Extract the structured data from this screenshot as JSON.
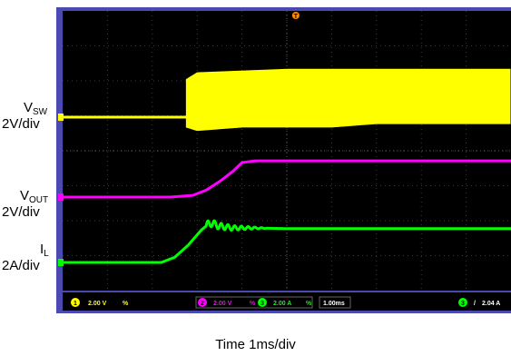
{
  "chart_data": {
    "type": "line",
    "xlabel": "Time  1ms/div",
    "series": [
      {
        "name_main": "V",
        "name_sub": "SW",
        "scale": "2V/div",
        "color": "#ffff00",
        "channel": "1",
        "x": [
          0,
          2.7,
          2.75,
          3,
          4,
          5,
          6,
          7,
          8,
          10
        ],
        "y_upper": [
          0,
          0,
          1.1,
          1.3,
          1.35,
          1.4,
          1.4,
          1.4,
          1.4,
          1.4
        ],
        "y_lower": [
          0,
          0,
          -0.3,
          -0.4,
          -0.3,
          -0.3,
          -0.3,
          -0.2,
          -0.2,
          -0.2
        ]
      },
      {
        "name_main": "V",
        "name_sub": "OUT",
        "scale": "2V/div",
        "color": "#ff00ff",
        "channel": "2",
        "x": [
          0,
          2.4,
          2.9,
          3.2,
          3.5,
          3.8,
          4.0,
          4.3,
          10
        ],
        "y": [
          0,
          0,
          0.05,
          0.2,
          0.45,
          0.75,
          1.0,
          1.05,
          1.05
        ]
      },
      {
        "name_main": "I",
        "name_sub": "L",
        "scale": "2A/div",
        "color": "#00ff00",
        "channel": "3",
        "x": [
          0,
          2.2,
          2.5,
          2.8,
          3.1,
          3.3,
          3.5,
          3.8,
          4.2,
          5,
          10
        ],
        "y": [
          0,
          0,
          0.15,
          0.5,
          0.95,
          1.15,
          1.05,
          1.0,
          1.0,
          0.98,
          0.98
        ]
      }
    ],
    "readout": {
      "ch1": "2.00 V",
      "ch1_mark": "%",
      "ch2": "2.00 V",
      "ch2_mark": "%",
      "ch3": "2.00 A",
      "ch3_mark": "%",
      "timebase": "1.00ms",
      "trigger_ch": "3",
      "trigger_level": "2.04 A"
    },
    "trigger_marker": "T",
    "grid": true
  }
}
